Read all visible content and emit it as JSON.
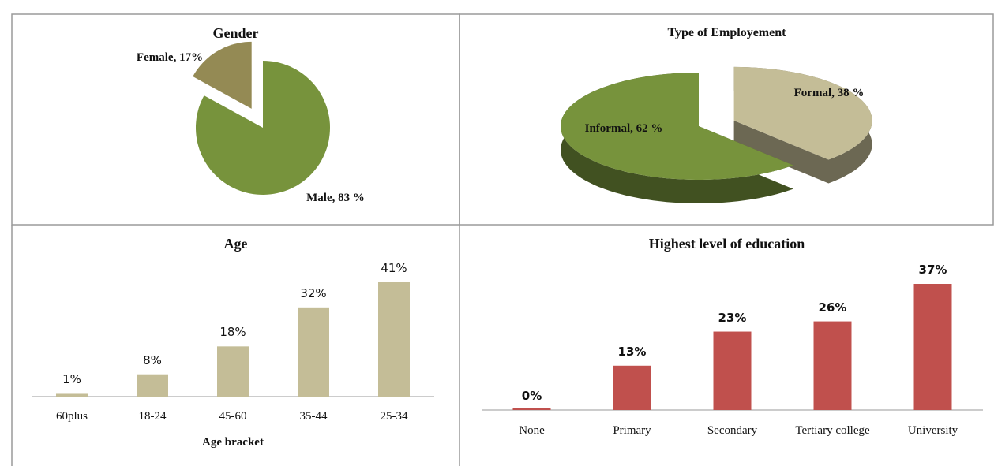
{
  "chart_data": [
    {
      "type": "pie",
      "title": "Gender",
      "categories": [
        "Female",
        "Male"
      ],
      "values": [
        17,
        83
      ],
      "value_labels": [
        "Female, 17%",
        "Male, 83 %"
      ],
      "colors": [
        "#948a54",
        "#77933c"
      ]
    },
    {
      "type": "pie3d",
      "title": "Type of Employement",
      "categories": [
        "Formal",
        "Informal"
      ],
      "values": [
        38,
        62
      ],
      "value_labels": [
        "Formal, 38 %",
        "Informal, 62 %"
      ],
      "colors": [
        "#c4bd97",
        "#77933c"
      ]
    },
    {
      "type": "bar",
      "title": "Age",
      "x_label": "Age bracket",
      "categories": [
        "60plus",
        "18-24",
        "45-60",
        "35-44",
        "25-34"
      ],
      "values": [
        1,
        8,
        18,
        32,
        41
      ],
      "value_labels": [
        "1%",
        "8%",
        "18%",
        "32%",
        "41%"
      ],
      "color": "#c4bd97"
    },
    {
      "type": "bar",
      "title": "Highest level of education",
      "categories": [
        "None",
        "Primary",
        "Secondary",
        "Tertiary college",
        "University"
      ],
      "values": [
        0,
        13,
        23,
        26,
        37
      ],
      "value_labels": [
        "0%",
        "13%",
        "23%",
        "26%",
        "37%"
      ],
      "color": "#c0504d"
    }
  ]
}
